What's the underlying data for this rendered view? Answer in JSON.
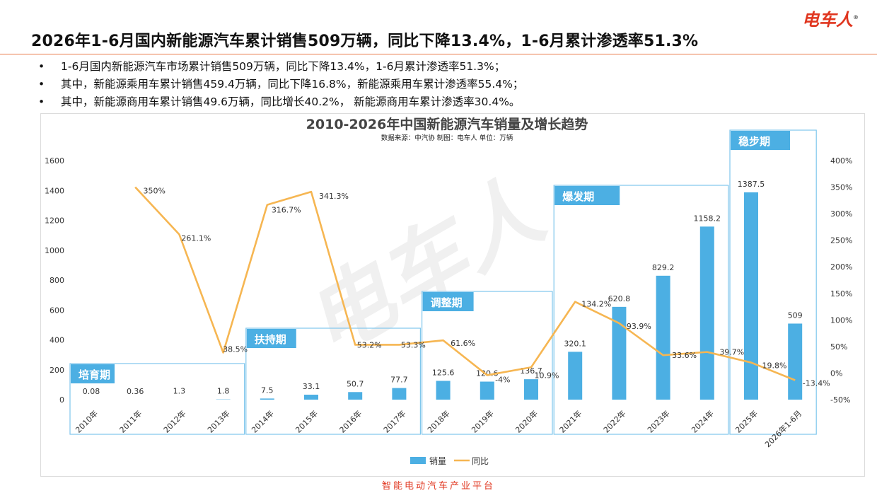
{
  "header": {
    "title": "2026年1-6月国内新能源汽车累计销售509万辆，同比下降13.4%，1-6月累计渗透率51.3%",
    "brand": "电车人",
    "brand_mark": "®"
  },
  "bullets": [
    "1-6月国内新能源汽车市场累计销售509万辆，同比下降13.4%，1-6月累计渗透率51.3%；",
    "其中，新能源乘用车累计销售459.4万辆，同比下降16.8%，新能源乘用车累计渗透率55.4%；",
    "其中，新能源商用车累计销售49.6万辆，同比增长40.2%， 新能源商用车累计渗透率30.4%。"
  ],
  "footer": "智能电动汽车产业平台",
  "watermark": "电车人",
  "colors": {
    "bar": "#4cafe3",
    "line": "#f6b652",
    "brand": "#e0361f",
    "phase_fill": "#4cafe3",
    "phase_border": "#7fc6ec"
  },
  "chart_data": {
    "type": "bar",
    "title": "2010-2026年中国新能源汽车销量及增长趋势",
    "subtitle": "数据来源：中汽协    制图：电车人    单位：万辆",
    "categories": [
      "2010年",
      "2011年",
      "2012年",
      "2013年",
      "2014年",
      "2015年",
      "2016年",
      "2017年",
      "2018年",
      "2019年",
      "2020年",
      "2021年",
      "2022年",
      "2023年",
      "2024年",
      "2025年",
      "2026年1-6月"
    ],
    "series": [
      {
        "name": "销量",
        "type": "bar",
        "axis": "left",
        "values": [
          0.08,
          0.36,
          1.3,
          1.8,
          7.5,
          33.1,
          50.7,
          77.7,
          125.6,
          120.6,
          136.7,
          320.1,
          620.8,
          829.2,
          1158.2,
          1387.5,
          509
        ],
        "labels": [
          "0.08",
          "0.36",
          "1.3",
          "1.8",
          "7.5",
          "33.1",
          "50.7",
          "77.7",
          "125.6",
          "120.6",
          "136.7",
          "320.1",
          "620.8",
          "829.2",
          "1158.2",
          "1387.5",
          "509"
        ]
      },
      {
        "name": "同比",
        "type": "line",
        "axis": "right",
        "values": [
          null,
          350,
          261.1,
          38.5,
          316.7,
          341.3,
          53.2,
          53.3,
          61.6,
          -4,
          10.9,
          134.2,
          93.9,
          33.6,
          39.7,
          19.8,
          -13.4
        ],
        "labels": [
          "",
          "350%",
          "261.1%",
          "38.5%",
          "316.7%",
          "341.3%",
          "53.2%",
          "53.3%",
          "61.6%",
          "-4%",
          "10.9%",
          "134.2%",
          "93.9%",
          "33.6%",
          "39.7%",
          "19.8%",
          "-13.4%"
        ]
      }
    ],
    "y_left": {
      "min": 0,
      "max": 1600,
      "ticks": [
        "0",
        "200",
        "400",
        "600",
        "800",
        "1000",
        "1200",
        "1400",
        "1600"
      ]
    },
    "y_right": {
      "min": -50,
      "max": 400,
      "ticks": [
        "-50%",
        "0%",
        "50%",
        "100%",
        "150%",
        "200%",
        "250%",
        "300%",
        "350%",
        "400%"
      ]
    },
    "phases": [
      {
        "label": "培育期",
        "from": 0,
        "to": 3
      },
      {
        "label": "扶持期",
        "from": 4,
        "to": 7
      },
      {
        "label": "调整期",
        "from": 8,
        "to": 10
      },
      {
        "label": "爆发期",
        "from": 11,
        "to": 14
      },
      {
        "label": "稳步期",
        "from": 15,
        "to": 16
      }
    ],
    "legend": {
      "position": "bottom",
      "entries": [
        "销量",
        "同比"
      ]
    },
    "grid": false
  }
}
